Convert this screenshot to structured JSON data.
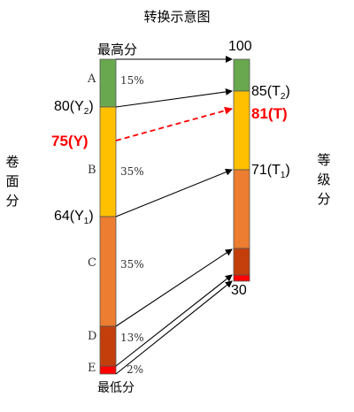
{
  "title": "转换示意图",
  "left_axis": {
    "vertical_label": [
      "卷",
      "面",
      "分"
    ],
    "top_label": "最高分",
    "bottom_label": "最低分",
    "segments": [
      {
        "letter": "A",
        "percent": "15%",
        "color": "#6aa84f"
      },
      {
        "letter": "B",
        "percent": "35%",
        "color": "#ffc000"
      },
      {
        "letter": "C",
        "percent": "35%",
        "color": "#ed7d31"
      },
      {
        "letter": "D",
        "percent": "13%",
        "color": "#c43e0c"
      },
      {
        "letter": "E",
        "percent": "2%",
        "color": "#ff0000"
      }
    ],
    "y2_label": "80(Y2)",
    "y_label": "75(Y)",
    "y1_label": "64(Y1)"
  },
  "right_axis": {
    "vertical_label": [
      "等",
      "级",
      "分"
    ],
    "top_value": "100",
    "t2_label": "85(T2)",
    "t_label": "81(T)",
    "t1_label": "71(T1)",
    "bottom_value": "30"
  },
  "colors": {
    "highlight": "#ff0000",
    "arrow": "#000000"
  }
}
